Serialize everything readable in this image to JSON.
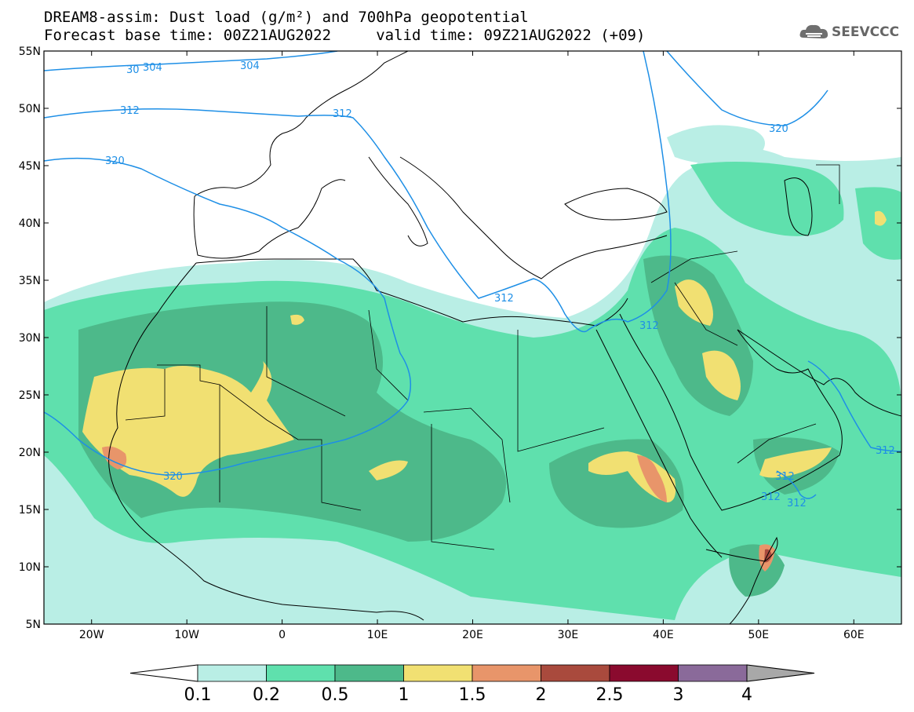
{
  "header": {
    "title_line1": "DREAM8-assim: Dust load (g/m²) and 700hPa geopotential",
    "title_line2": "Forecast base time: 00Z21AUG2022     valid time: 09Z21AUG2022 (+09)"
  },
  "logo": {
    "text": "SEEVCCC",
    "icon": "cloud-logo-icon"
  },
  "map": {
    "lon_range": [
      -25,
      65
    ],
    "lat_range": [
      5,
      55
    ],
    "lat_ticks": [
      "55N",
      "50N",
      "45N",
      "40N",
      "35N",
      "30N",
      "25N",
      "20N",
      "15N",
      "10N",
      "5N"
    ],
    "lon_ticks": [
      "20W",
      "10W",
      "0",
      "10E",
      "20E",
      "30E",
      "40E",
      "50E",
      "60E"
    ],
    "geopotential_labels": [
      "30",
      "304",
      "304",
      "312",
      "312",
      "320",
      "312",
      "320",
      "312",
      "312",
      "312",
      "312",
      "312"
    ],
    "contour_color": "#1e8fe6"
  },
  "colorbar": {
    "levels": [
      "0.1",
      "0.2",
      "0.5",
      "1",
      "1.5",
      "2",
      "2.5",
      "3",
      "4"
    ],
    "colors": [
      "#b9eee5",
      "#5fe0ad",
      "#4db98a",
      "#f1e072",
      "#e8956a",
      "#a94a3d",
      "#8a0a2e",
      "#8a6a9a"
    ]
  }
}
